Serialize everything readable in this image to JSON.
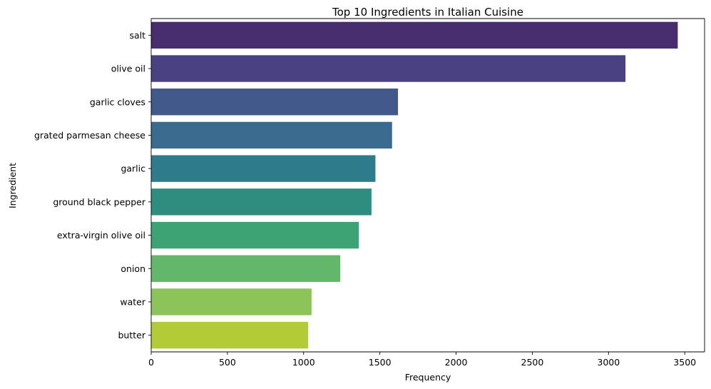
{
  "chart_data": {
    "type": "bar",
    "orientation": "horizontal",
    "title": "Top 10 Ingredients in Italian Cuisine",
    "xlabel": "Frequency",
    "ylabel": "Ingredient",
    "categories": [
      "salt",
      "olive oil",
      "garlic cloves",
      "grated parmesan cheese",
      "garlic",
      "ground black pepper",
      "extra-virgin olive oil",
      "onion",
      "water",
      "butter"
    ],
    "values": [
      3454,
      3111,
      1619,
      1580,
      1471,
      1445,
      1362,
      1240,
      1052,
      1030
    ],
    "colors": [
      "#472c6e",
      "#4a4183",
      "#41588a",
      "#386b8e",
      "#2e7b8c",
      "#2f8d80",
      "#3da274",
      "#62b76b",
      "#8cc45a",
      "#b3cb36"
    ],
    "xlim": [
      0,
      3630
    ],
    "xticks": [
      0,
      500,
      1000,
      1500,
      2000,
      2500,
      3000,
      3500
    ],
    "grid": false,
    "legend": false
  }
}
